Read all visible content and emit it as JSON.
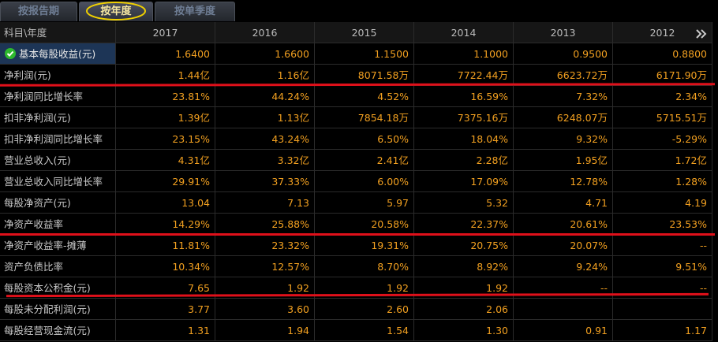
{
  "tabs": [
    "按报告期",
    "按年度",
    "按单季度"
  ],
  "table": {
    "header": [
      "科目\\年度",
      "2017",
      "2016",
      "2015",
      "2014",
      "2013",
      "2012"
    ],
    "rows": [
      [
        "基本每股收益(元)",
        "1.6400",
        "1.6600",
        "1.1500",
        "1.1000",
        "0.9500",
        "0.8800"
      ],
      [
        "净利润(元)",
        "1.44亿",
        "1.16亿",
        "8071.58万",
        "7722.44万",
        "6623.72万",
        "6171.90万"
      ],
      [
        "净利润同比增长率",
        "23.81%",
        "44.24%",
        "4.52%",
        "16.59%",
        "7.32%",
        "2.34%"
      ],
      [
        "扣非净利润(元)",
        "1.39亿",
        "1.13亿",
        "7854.18万",
        "7375.16万",
        "6248.07万",
        "5715.51万"
      ],
      [
        "扣非净利润同比增长率",
        "23.15%",
        "43.24%",
        "6.50%",
        "18.04%",
        "9.32%",
        "-5.29%"
      ],
      [
        "营业总收入(元)",
        "4.31亿",
        "3.32亿",
        "2.41亿",
        "2.28亿",
        "1.95亿",
        "1.72亿"
      ],
      [
        "营业总收入同比增长率",
        "29.91%",
        "37.33%",
        "6.00%",
        "17.09%",
        "12.78%",
        "1.28%"
      ],
      [
        "每股净资产(元)",
        "13.04",
        "7.13",
        "5.97",
        "5.32",
        "4.71",
        "4.19"
      ],
      [
        "净资产收益率",
        "14.29%",
        "25.88%",
        "20.58%",
        "22.37%",
        "20.61%",
        "23.53%"
      ],
      [
        "净资产收益率-摊薄",
        "11.81%",
        "23.32%",
        "19.31%",
        "20.75%",
        "20.07%",
        "--"
      ],
      [
        "资产负债比率",
        "10.34%",
        "12.57%",
        "8.70%",
        "8.92%",
        "9.24%",
        "9.51%"
      ],
      [
        "每股资本公积金(元)",
        "7.65",
        "1.92",
        "1.92",
        "1.92",
        "--",
        "--"
      ],
      [
        "每股未分配利润(元)",
        "3.77",
        "3.60",
        "2.60",
        "2.06",
        null,
        null
      ],
      [
        "每股经营现金流(元)",
        "1.31",
        "1.94",
        "1.54",
        "1.30",
        "0.91",
        "1.17"
      ]
    ]
  }
}
